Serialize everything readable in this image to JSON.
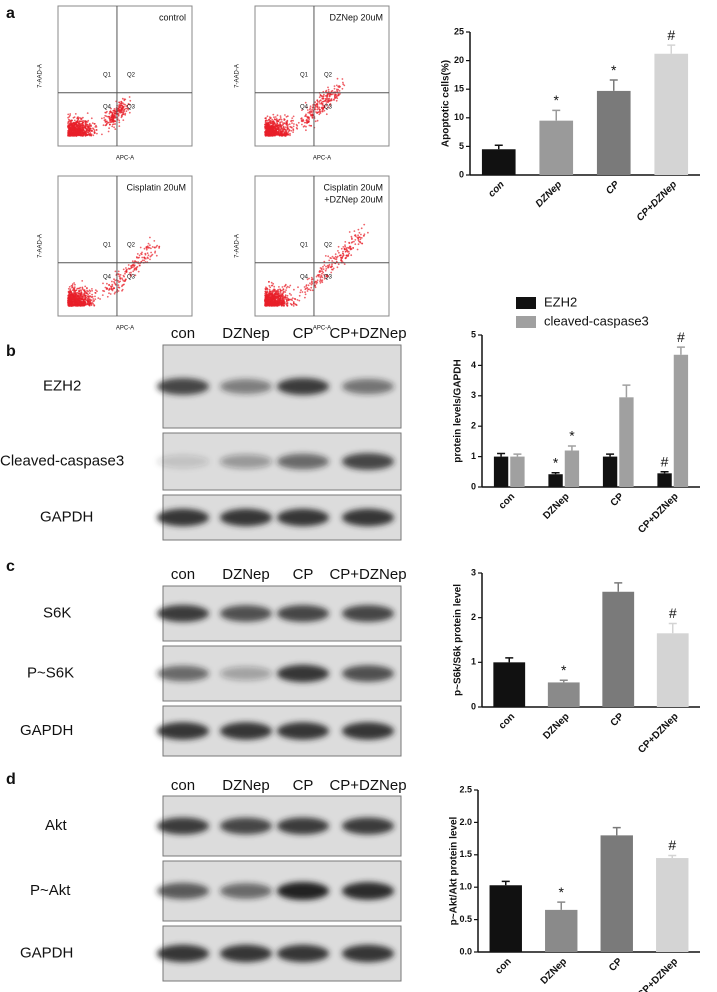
{
  "panels": [
    "a",
    "b",
    "c",
    "d"
  ],
  "flow": {
    "plots": [
      {
        "label": [
          "control"
        ]
      },
      {
        "label": [
          "DZNep 20uM"
        ]
      },
      {
        "label": [
          "Cisplatin 20uM"
        ]
      },
      {
        "label": [
          "Cisplatin 20uM",
          "+DZNep 20uM"
        ]
      }
    ],
    "quadrants": [
      "Q1",
      "Q2",
      "Q3",
      "Q4"
    ],
    "xlabel": "APC-A",
    "ylabel": "7-AAD-A"
  },
  "blots": [
    {
      "lanes": [
        "con",
        "DZNep",
        "CP",
        "CP+DZNep"
      ],
      "rows": [
        "EZH2",
        "Cleaved-caspase3",
        "GAPDH"
      ]
    },
    {
      "lanes": [
        "con",
        "DZNep",
        "CP",
        "CP+DZNep"
      ],
      "rows": [
        "S6K",
        "P~S6K",
        "GAPDH"
      ]
    },
    {
      "lanes": [
        "con",
        "DZNep",
        "CP",
        "CP+DZNep"
      ],
      "rows": [
        "Akt",
        "P~Akt",
        "GAPDH"
      ]
    }
  ],
  "chart_data": [
    {
      "type": "bar",
      "ylabel": "Apoptotic cells(%)",
      "categories": [
        "con",
        "DZNep",
        "CP",
        "CP+DZNep"
      ],
      "values": [
        4.5,
        9.5,
        14.7,
        21.2
      ],
      "errors": [
        0.7,
        1.8,
        1.9,
        1.5
      ],
      "colors": [
        "#111111",
        "#9a9a9a",
        "#7a7a7a",
        "#d4d4d4"
      ],
      "annotations": [
        null,
        "*",
        "*",
        "#"
      ],
      "ylim": [
        0,
        25
      ],
      "yticks": [
        0,
        5,
        10,
        15,
        20,
        25
      ]
    },
    {
      "type": "bar",
      "ylabel": "protein levels/GAPDH",
      "categories": [
        "con",
        "DZNep",
        "CP",
        "CP+DZNep"
      ],
      "series": [
        {
          "name": "EZH2",
          "color": "#111111",
          "values": [
            1.0,
            0.42,
            1.0,
            0.45
          ],
          "errors": [
            0.1,
            0.05,
            0.08,
            0.05
          ],
          "annotations": [
            null,
            "*",
            null,
            "#"
          ]
        },
        {
          "name": "cleaved-caspase3",
          "color": "#a0a0a0",
          "values": [
            1.0,
            1.2,
            2.95,
            4.35
          ],
          "errors": [
            0.08,
            0.15,
            0.4,
            0.25
          ],
          "annotations": [
            null,
            "*",
            null,
            "#"
          ]
        }
      ],
      "legend": "top",
      "ylim": [
        0,
        5
      ],
      "yticks": [
        0,
        1,
        2,
        3,
        4,
        5
      ]
    },
    {
      "type": "bar",
      "ylabel": "p~S6k/S6k protein level",
      "categories": [
        "con",
        "DZNep",
        "CP",
        "CP+DZNep"
      ],
      "values": [
        1.0,
        0.55,
        2.58,
        1.65
      ],
      "errors": [
        0.1,
        0.05,
        0.2,
        0.22
      ],
      "colors": [
        "#111111",
        "#8a8a8a",
        "#7a7a7a",
        "#d4d4d4"
      ],
      "annotations": [
        null,
        "*",
        null,
        "#"
      ],
      "ylim": [
        0,
        3
      ],
      "yticks": [
        0,
        1,
        2,
        3
      ]
    },
    {
      "type": "bar",
      "ylabel": "p~Akt/Akt protein level",
      "categories": [
        "con",
        "DZNep",
        "CP",
        "CP+DZNep"
      ],
      "values": [
        1.03,
        0.65,
        1.8,
        1.45
      ],
      "errors": [
        0.06,
        0.12,
        0.12,
        0.04
      ],
      "colors": [
        "#111111",
        "#8a8a8a",
        "#7a7a7a",
        "#d4d4d4"
      ],
      "annotations": [
        null,
        "*",
        null,
        "#"
      ],
      "ylim": [
        0,
        2.5
      ],
      "yticks": [
        {
          "value": 0,
          "label": "0.0"
        },
        0.5,
        {
          "value": 1,
          "label": "1.0"
        },
        1.5,
        {
          "value": 2,
          "label": "2.0"
        },
        2.5
      ]
    }
  ]
}
